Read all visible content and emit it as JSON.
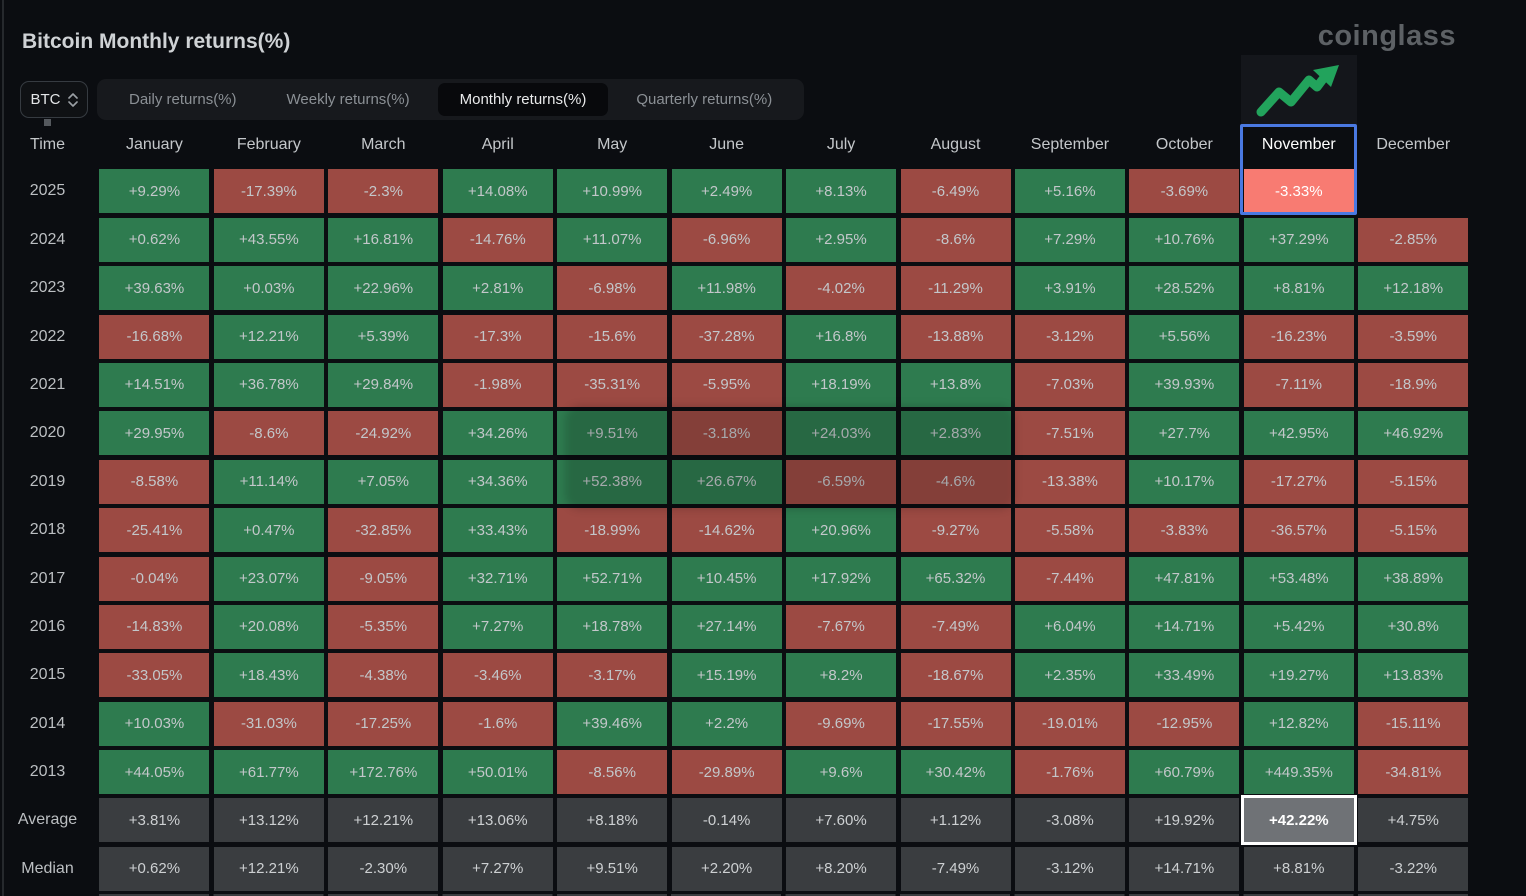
{
  "header": {
    "title": "Bitcoin Monthly returns(%)",
    "logo": "coinglass"
  },
  "controls": {
    "coin_select": {
      "value": "BTC"
    },
    "tabs": [
      {
        "label": "Daily returns(%)",
        "active": false
      },
      {
        "label": "Weekly returns(%)",
        "active": false
      },
      {
        "label": "Monthly returns(%)",
        "active": true
      },
      {
        "label": "Quarterly returns(%)",
        "active": false
      }
    ]
  },
  "colors": {
    "positive_cell": "#2e7b4f",
    "negative_cell": "#9c4a43",
    "summary_cell": "#3a3d40",
    "selected_cell_bg": "#f87b72",
    "selected_column_border": "#4a79e2",
    "highlighted_average_bg": "#6f7276",
    "trend_arrow_green": "#22a35c"
  },
  "table": {
    "time_header": "Time",
    "months": [
      "January",
      "February",
      "March",
      "April",
      "May",
      "June",
      "July",
      "August",
      "September",
      "October",
      "November",
      "December"
    ],
    "selected_month": "November",
    "highlights": {
      "selected_cell": {
        "row": "2025",
        "month": "November",
        "value": "-3.33%"
      },
      "highlighted_average": {
        "month": "November",
        "value": "+42.22%"
      }
    },
    "rows": [
      {
        "label": "2025",
        "values": [
          "+9.29%",
          "-17.39%",
          "-2.3%",
          "+14.08%",
          "+10.99%",
          "+2.49%",
          "+8.13%",
          "-6.49%",
          "+5.16%",
          "-3.69%",
          "-3.33%",
          ""
        ]
      },
      {
        "label": "2024",
        "values": [
          "+0.62%",
          "+43.55%",
          "+16.81%",
          "-14.76%",
          "+11.07%",
          "-6.96%",
          "+2.95%",
          "-8.6%",
          "+7.29%",
          "+10.76%",
          "+37.29%",
          "-2.85%"
        ]
      },
      {
        "label": "2023",
        "values": [
          "+39.63%",
          "+0.03%",
          "+22.96%",
          "+2.81%",
          "-6.98%",
          "+11.98%",
          "-4.02%",
          "-11.29%",
          "+3.91%",
          "+28.52%",
          "+8.81%",
          "+12.18%"
        ]
      },
      {
        "label": "2022",
        "values": [
          "-16.68%",
          "+12.21%",
          "+5.39%",
          "-17.3%",
          "-15.6%",
          "-37.28%",
          "+16.8%",
          "-13.88%",
          "-3.12%",
          "+5.56%",
          "-16.23%",
          "-3.59%"
        ]
      },
      {
        "label": "2021",
        "values": [
          "+14.51%",
          "+36.78%",
          "+29.84%",
          "-1.98%",
          "-35.31%",
          "-5.95%",
          "+18.19%",
          "+13.8%",
          "-7.03%",
          "+39.93%",
          "-7.11%",
          "-18.9%"
        ]
      },
      {
        "label": "2020",
        "values": [
          "+29.95%",
          "-8.6%",
          "-24.92%",
          "+34.26%",
          "+9.51%",
          "-3.18%",
          "+24.03%",
          "+2.83%",
          "-7.51%",
          "+27.7%",
          "+42.95%",
          "+46.92%"
        ]
      },
      {
        "label": "2019",
        "values": [
          "-8.58%",
          "+11.14%",
          "+7.05%",
          "+34.36%",
          "+52.38%",
          "+26.67%",
          "-6.59%",
          "-4.6%",
          "-13.38%",
          "+10.17%",
          "-17.27%",
          "-5.15%"
        ]
      },
      {
        "label": "2018",
        "values": [
          "-25.41%",
          "+0.47%",
          "-32.85%",
          "+33.43%",
          "-18.99%",
          "-14.62%",
          "+20.96%",
          "-9.27%",
          "-5.58%",
          "-3.83%",
          "-36.57%",
          "-5.15%"
        ]
      },
      {
        "label": "2017",
        "values": [
          "-0.04%",
          "+23.07%",
          "-9.05%",
          "+32.71%",
          "+52.71%",
          "+10.45%",
          "+17.92%",
          "+65.32%",
          "-7.44%",
          "+47.81%",
          "+53.48%",
          "+38.89%"
        ]
      },
      {
        "label": "2016",
        "values": [
          "-14.83%",
          "+20.08%",
          "-5.35%",
          "+7.27%",
          "+18.78%",
          "+27.14%",
          "-7.67%",
          "-7.49%",
          "+6.04%",
          "+14.71%",
          "+5.42%",
          "+30.8%"
        ]
      },
      {
        "label": "2015",
        "values": [
          "-33.05%",
          "+18.43%",
          "-4.38%",
          "-3.46%",
          "-3.17%",
          "+15.19%",
          "+8.2%",
          "-18.67%",
          "+2.35%",
          "+33.49%",
          "+19.27%",
          "+13.83%"
        ]
      },
      {
        "label": "2014",
        "values": [
          "+10.03%",
          "-31.03%",
          "-17.25%",
          "-1.6%",
          "+39.46%",
          "+2.2%",
          "-9.69%",
          "-17.55%",
          "-19.01%",
          "-12.95%",
          "+12.82%",
          "-15.11%"
        ]
      },
      {
        "label": "2013",
        "values": [
          "+44.05%",
          "+61.77%",
          "+172.76%",
          "+50.01%",
          "-8.56%",
          "-29.89%",
          "+9.6%",
          "+30.42%",
          "-1.76%",
          "+60.79%",
          "+449.35%",
          "-34.81%"
        ]
      },
      {
        "label": "Average",
        "type": "summary",
        "values": [
          "+3.81%",
          "+13.12%",
          "+12.21%",
          "+13.06%",
          "+8.18%",
          "-0.14%",
          "+7.60%",
          "+1.12%",
          "-3.08%",
          "+19.92%",
          "+42.22%",
          "+4.75%"
        ]
      },
      {
        "label": "Median",
        "type": "summary",
        "values": [
          "+0.62%",
          "+12.21%",
          "-2.30%",
          "+7.27%",
          "+9.51%",
          "+2.20%",
          "+8.20%",
          "-7.49%",
          "-3.12%",
          "+14.71%",
          "+8.81%",
          "-3.22%"
        ]
      }
    ]
  }
}
